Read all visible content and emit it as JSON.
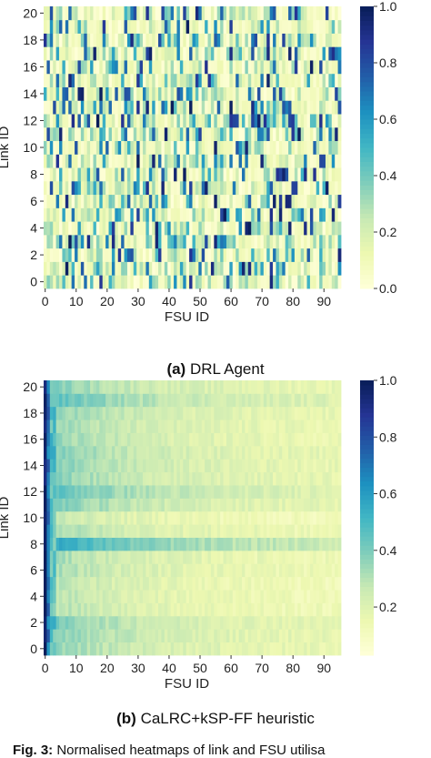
{
  "chart_data": [
    {
      "type": "heatmap",
      "caption_tag": "(a)",
      "caption_text": "DRL Agent",
      "xlabel": "FSU ID",
      "ylabel": "Link ID",
      "x_range": [
        0,
        95
      ],
      "y_range": [
        0,
        20
      ],
      "x_ticks": [
        0,
        10,
        20,
        30,
        40,
        50,
        60,
        70,
        80,
        90
      ],
      "y_ticks": [
        0,
        2,
        4,
        6,
        8,
        10,
        12,
        14,
        16,
        18,
        20
      ],
      "colorbar": {
        "ticks": [
          0.0,
          0.2,
          0.4,
          0.6,
          0.8,
          1.0
        ],
        "tick_labels": [
          "0.0",
          "0.2",
          "0.4",
          "0.6",
          "0.8",
          "1.0"
        ],
        "range": [
          0.0,
          1.0
        ]
      },
      "colormap": [
        "#ffffd9",
        "#edf8b1",
        "#c7e9b4",
        "#7fcdbb",
        "#41b6c4",
        "#1d91c0",
        "#225ea8",
        "#253494",
        "#081d58"
      ],
      "pattern": "sparse"
    },
    {
      "type": "heatmap",
      "caption_tag": "(b)",
      "caption_text": "CaLRC+kSP-FF heuristic",
      "xlabel": "FSU ID",
      "ylabel": "Link ID",
      "x_range": [
        0,
        95
      ],
      "y_range": [
        0,
        20
      ],
      "x_ticks": [
        0,
        10,
        20,
        30,
        40,
        50,
        60,
        70,
        80,
        90
      ],
      "y_ticks": [
        0,
        2,
        4,
        6,
        8,
        10,
        12,
        14,
        16,
        18,
        20
      ],
      "colorbar": {
        "ticks": [
          0.2,
          0.4,
          0.6,
          0.8,
          1.0
        ],
        "tick_labels": [
          "0.2",
          "0.4",
          "0.6",
          "0.8",
          "1.0"
        ],
        "range": [
          0.03,
          1.0
        ]
      },
      "colormap": [
        "#ffffd9",
        "#edf8b1",
        "#c7e9b4",
        "#7fcdbb",
        "#41b6c4",
        "#1d91c0",
        "#225ea8",
        "#253494",
        "#081d58"
      ],
      "pattern": "first_fit"
    }
  ],
  "figure_caption": {
    "tag": "Fig. 3:",
    "text": "Normalised heatmaps of link and FSU utilisa"
  }
}
